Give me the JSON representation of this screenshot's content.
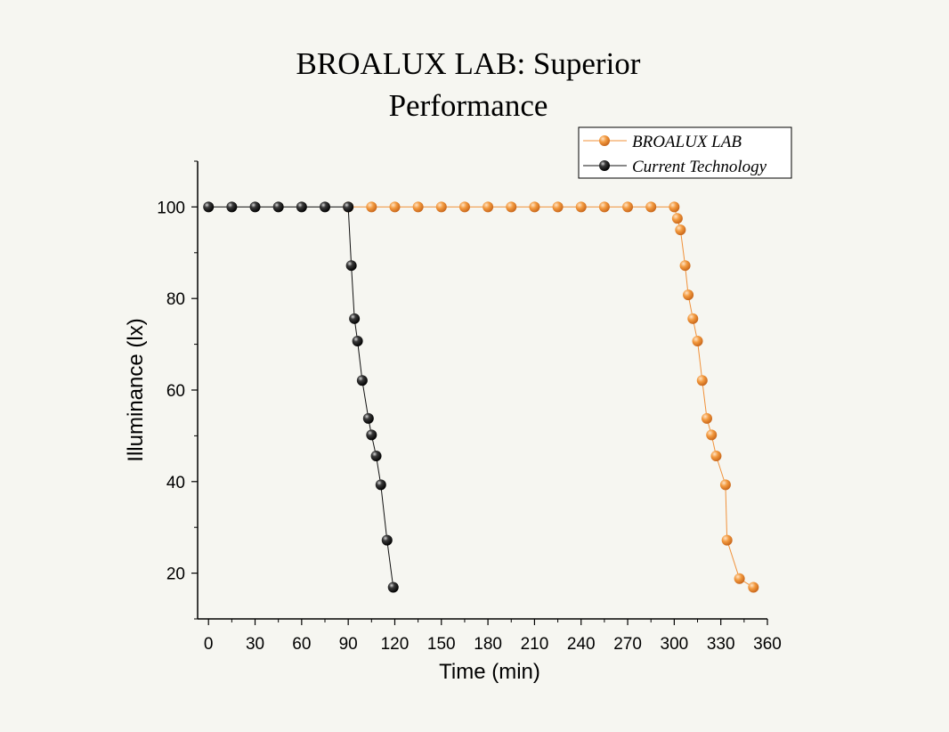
{
  "chart_data": {
    "type": "line",
    "title_lines": [
      "BROALUX LAB: Superior",
      "Performance"
    ],
    "xlabel": "Time (min)",
    "ylabel": "Illuminance (lx)",
    "xlim": [
      -7,
      360
    ],
    "ylim": [
      10,
      110
    ],
    "x_ticks": [
      0,
      30,
      60,
      90,
      120,
      150,
      180,
      210,
      240,
      270,
      300,
      330,
      360
    ],
    "y_ticks": [
      20,
      40,
      60,
      80,
      100
    ],
    "grid": false,
    "legend_position": "top-right",
    "series": [
      {
        "name": "BROALUX LAB",
        "color": "#f0913a",
        "x": [
          90,
          105,
          120,
          135,
          150,
          165,
          180,
          195,
          210,
          225,
          240,
          255,
          270,
          285,
          300,
          302,
          304,
          307,
          309,
          312,
          315,
          318,
          321,
          324,
          327,
          333,
          334,
          342,
          351
        ],
        "y": [
          100,
          100,
          100,
          100,
          100,
          100,
          100,
          100,
          100,
          100,
          100,
          100,
          100,
          100,
          100,
          97.5,
          95,
          87.2,
          80.8,
          75.6,
          70.7,
          62.1,
          53.8,
          50.2,
          45.6,
          39.3,
          27.2,
          18.8,
          16.9
        ]
      },
      {
        "name": "Current Technology",
        "color": "#111111",
        "x": [
          0,
          15,
          30,
          45,
          60,
          75,
          90,
          92,
          94,
          96,
          99,
          103,
          105,
          108,
          111,
          115,
          119
        ],
        "y": [
          100,
          100,
          100,
          100,
          100,
          100,
          100,
          87.2,
          75.6,
          70.7,
          62.1,
          53.8,
          50.2,
          45.6,
          39.3,
          27.2,
          16.9
        ]
      }
    ]
  }
}
